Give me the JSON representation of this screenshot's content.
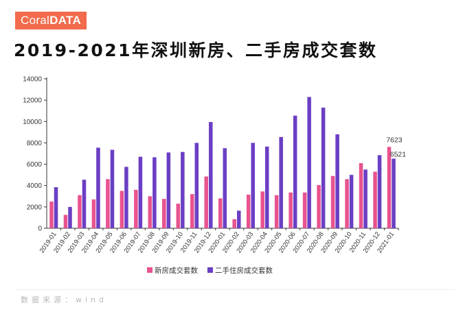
{
  "brand": {
    "part1": "Coral",
    "part2": "DATA"
  },
  "page_title": "2019-2021年深圳新房、二手房成交套数",
  "source_text": "数据来源：wind",
  "colors": {
    "series1": "#e8538f",
    "series2": "#6b3fc4",
    "brand": "#f26b4c"
  },
  "chart_data": {
    "type": "bar",
    "title": "",
    "xlabel": "",
    "ylabel": "",
    "ylim": [
      0,
      14000
    ],
    "yticks": [
      0,
      2000,
      4000,
      6000,
      8000,
      10000,
      12000,
      14000
    ],
    "grid": false,
    "legend_position": "bottom",
    "categories": [
      "2019-01",
      "2019-02",
      "2019-03",
      "2019-04",
      "2019-05",
      "2019-06",
      "2019-07",
      "2019-08",
      "2019-09",
      "2019-10",
      "2019-11",
      "2019-12",
      "2020-01",
      "2020-02",
      "2020-03",
      "2020-04",
      "2020-05",
      "2020-06",
      "2020-07",
      "2020-08",
      "2020-09",
      "2020-10",
      "2020-11",
      "2020-12",
      "2021-01"
    ],
    "series": [
      {
        "name": "新房成交套数",
        "values": [
          2500,
          1250,
          3100,
          2700,
          4600,
          3500,
          3600,
          3000,
          2750,
          2300,
          3200,
          4850,
          2800,
          850,
          3150,
          3450,
          3100,
          3350,
          3350,
          4050,
          4900,
          4600,
          6100,
          5300,
          7623
        ]
      },
      {
        "name": "二手住房成交套数",
        "values": [
          3850,
          2000,
          4550,
          7550,
          7350,
          5750,
          6700,
          6650,
          7100,
          7150,
          8000,
          9950,
          7500,
          1650,
          8000,
          7650,
          8550,
          10550,
          12300,
          11300,
          8800,
          5000,
          5500,
          6850,
          6521
        ]
      }
    ],
    "annotations": [
      {
        "category": "2021-01",
        "series": "新房成交套数",
        "text": "7623"
      },
      {
        "category": "2021-01",
        "series": "二手住房成交套数",
        "text": "6521"
      }
    ]
  }
}
